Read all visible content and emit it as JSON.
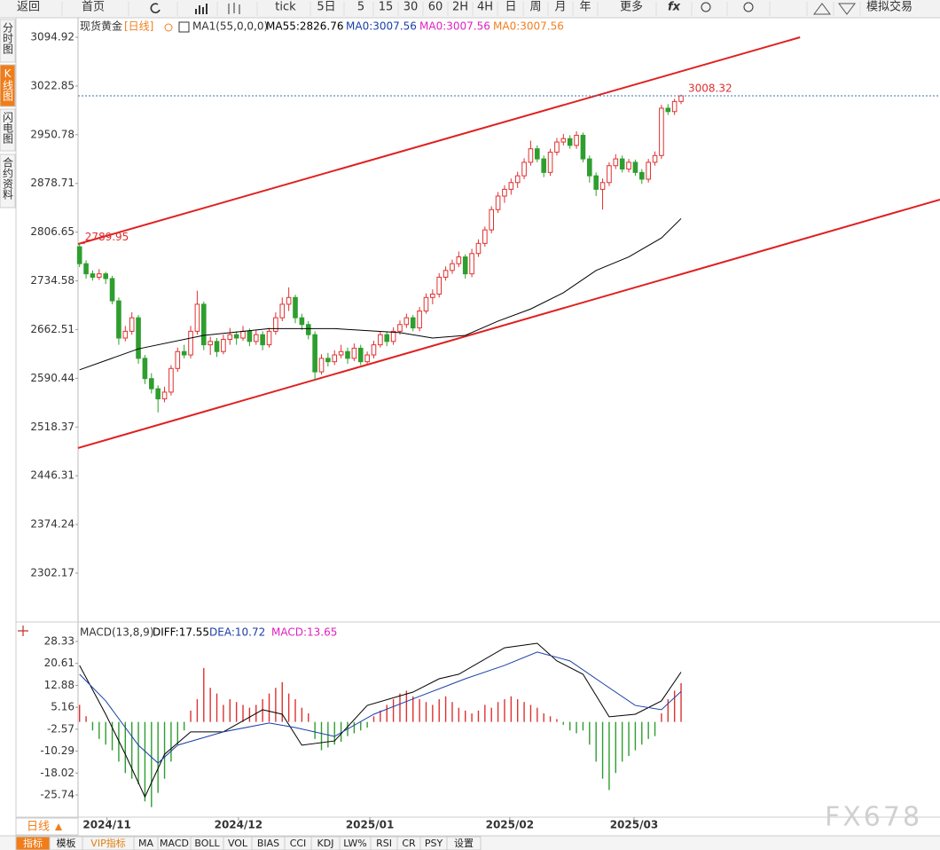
{
  "toolbar": [
    "返回",
    "首页",
    "tick",
    "5日",
    "5",
    "15",
    "30",
    "60",
    "2H",
    "4H",
    "日",
    "周",
    "月",
    "年",
    "更多",
    "fx",
    "模拟交易"
  ],
  "side_tabs": [
    "分时图",
    "K线图",
    "闪电图",
    "合约资料"
  ],
  "period_tab": "日线",
  "bottom_tabs": [
    "指标",
    "模板",
    "VIP指标",
    "MA",
    "MACD",
    "BOLL",
    "VOL",
    "BIAS",
    "CCI",
    "KDJ",
    "LW%",
    "RSI",
    "CR",
    "PSY",
    "设置"
  ],
  "watermark": "FX678",
  "chart_data": [
    {
      "type": "candlestick",
      "title": "现货黄金",
      "period": "[日线]",
      "indicator": "MA1(55,0,0,0)",
      "legend": [
        {
          "label": "MA55:2826.76",
          "color": "#000000"
        },
        {
          "label": "MA0:3007.56",
          "color": "#1a3fa8"
        },
        {
          "label": "MA0:3007.56",
          "color": "#e020c0"
        },
        {
          "label": "MA0:3007.56",
          "color": "#f08020"
        }
      ],
      "up_color": "#e03030",
      "down_color": "#2e9e2e",
      "xlim": [
        0.77,
        132.6
      ],
      "ylim": [
        2231.3,
        3121.2
      ],
      "yticks": [
        3094.92,
        3022.85,
        2950.78,
        2878.71,
        2806.65,
        2734.58,
        2662.51,
        2590.44,
        2518.37,
        2446.31,
        2374.24,
        2302.17
      ],
      "ohlc": [
        [
          2785,
          2789.95,
          2755,
          2760
        ],
        [
          2760,
          2765,
          2738,
          2745
        ],
        [
          2745,
          2750,
          2735,
          2740
        ],
        [
          2740,
          2752,
          2736,
          2745
        ],
        [
          2745,
          2748,
          2730,
          2738
        ],
        [
          2738,
          2742,
          2700,
          2705
        ],
        [
          2705,
          2710,
          2640,
          2650
        ],
        [
          2650,
          2668,
          2645,
          2660
        ],
        [
          2660,
          2688,
          2655,
          2680
        ],
        [
          2680,
          2684,
          2612,
          2620
        ],
        [
          2620,
          2625,
          2582,
          2590
        ],
        [
          2590,
          2598,
          2568,
          2575
        ],
        [
          2575,
          2580,
          2540,
          2560
        ],
        [
          2560,
          2578,
          2555,
          2570
        ],
        [
          2570,
          2610,
          2565,
          2605
        ],
        [
          2605,
          2636,
          2600,
          2630
        ],
        [
          2630,
          2640,
          2620,
          2625
        ],
        [
          2625,
          2668,
          2620,
          2660
        ],
        [
          2660,
          2720,
          2655,
          2700
        ],
        [
          2700,
          2704,
          2632,
          2640
        ],
        [
          2640,
          2652,
          2625,
          2645
        ],
        [
          2645,
          2650,
          2622,
          2630
        ],
        [
          2630,
          2655,
          2626,
          2648
        ],
        [
          2648,
          2665,
          2640,
          2655
        ],
        [
          2655,
          2660,
          2640,
          2650
        ],
        [
          2650,
          2668,
          2646,
          2660
        ],
        [
          2660,
          2664,
          2638,
          2645
        ],
        [
          2645,
          2662,
          2640,
          2655
        ],
        [
          2655,
          2660,
          2632,
          2640
        ],
        [
          2640,
          2665,
          2636,
          2660
        ],
        [
          2660,
          2688,
          2655,
          2680
        ],
        [
          2680,
          2710,
          2675,
          2700
        ],
        [
          2700,
          2725,
          2690,
          2710
        ],
        [
          2710,
          2714,
          2672,
          2680
        ],
        [
          2680,
          2686,
          2662,
          2670
        ],
        [
          2670,
          2675,
          2648,
          2655
        ],
        [
          2655,
          2660,
          2588,
          2600
        ],
        [
          2600,
          2626,
          2596,
          2620
        ],
        [
          2620,
          2628,
          2608,
          2615
        ],
        [
          2615,
          2632,
          2610,
          2625
        ],
        [
          2625,
          2640,
          2620,
          2630
        ],
        [
          2630,
          2636,
          2612,
          2620
        ],
        [
          2620,
          2642,
          2616,
          2635
        ],
        [
          2635,
          2640,
          2610,
          2615
        ],
        [
          2615,
          2630,
          2612,
          2625
        ],
        [
          2625,
          2646,
          2620,
          2640
        ],
        [
          2640,
          2660,
          2636,
          2655
        ],
        [
          2655,
          2660,
          2638,
          2645
        ],
        [
          2645,
          2666,
          2640,
          2660
        ],
        [
          2660,
          2676,
          2655,
          2670
        ],
        [
          2670,
          2686,
          2665,
          2680
        ],
        [
          2680,
          2684,
          2660,
          2665
        ],
        [
          2665,
          2696,
          2660,
          2690
        ],
        [
          2690,
          2716,
          2686,
          2710
        ],
        [
          2710,
          2722,
          2700,
          2715
        ],
        [
          2715,
          2746,
          2710,
          2740
        ],
        [
          2740,
          2756,
          2735,
          2750
        ],
        [
          2750,
          2766,
          2745,
          2760
        ],
        [
          2760,
          2778,
          2755,
          2770
        ],
        [
          2770,
          2774,
          2738,
          2745
        ],
        [
          2745,
          2782,
          2740,
          2775
        ],
        [
          2775,
          2796,
          2770,
          2790
        ],
        [
          2790,
          2815,
          2785,
          2810
        ],
        [
          2810,
          2845,
          2805,
          2840
        ],
        [
          2840,
          2866,
          2835,
          2860
        ],
        [
          2860,
          2876,
          2850,
          2870
        ],
        [
          2870,
          2886,
          2862,
          2880
        ],
        [
          2880,
          2896,
          2872,
          2890
        ],
        [
          2890,
          2916,
          2885,
          2910
        ],
        [
          2910,
          2942,
          2905,
          2930
        ],
        [
          2930,
          2935,
          2910,
          2915
        ],
        [
          2915,
          2920,
          2888,
          2895
        ],
        [
          2895,
          2930,
          2890,
          2925
        ],
        [
          2925,
          2946,
          2920,
          2940
        ],
        [
          2940,
          2952,
          2935,
          2945
        ],
        [
          2945,
          2950,
          2930,
          2935
        ],
        [
          2935,
          2956,
          2930,
          2950
        ],
        [
          2950,
          2954,
          2910,
          2915
        ],
        [
          2915,
          2920,
          2880,
          2890
        ],
        [
          2890,
          2895,
          2860,
          2870
        ],
        [
          2870,
          2886,
          2840,
          2880
        ],
        [
          2880,
          2910,
          2875,
          2905
        ],
        [
          2905,
          2922,
          2900,
          2915
        ],
        [
          2915,
          2920,
          2895,
          2900
        ],
        [
          2900,
          2915,
          2895,
          2910
        ],
        [
          2910,
          2914,
          2890,
          2895
        ],
        [
          2895,
          2900,
          2878,
          2885
        ],
        [
          2885,
          2915,
          2880,
          2910
        ],
        [
          2910,
          2926,
          2905,
          2920
        ],
        [
          2920,
          2995,
          2915,
          2990
        ],
        [
          2990,
          2996,
          2980,
          2985
        ],
        [
          2985,
          3004,
          2980,
          3000
        ],
        [
          3000,
          3010,
          2996,
          3008.32
        ]
      ],
      "ma55": {
        "color": "#000000",
        "x": [
          1,
          10,
          20,
          30,
          40,
          50,
          55,
          60,
          65,
          70,
          75,
          80,
          85,
          90,
          93
        ],
        "values": [
          2603,
          2634,
          2654,
          2664,
          2664,
          2658,
          2650,
          2654,
          2675,
          2693,
          2717,
          2750,
          2770,
          2798,
          2826.76
        ]
      },
      "trendlines": [
        {
          "color": "#e02020",
          "x": [
            0.77,
            111.2
          ],
          "values": [
            2789.1,
            3094.92
          ]
        },
        {
          "color": "#e02020",
          "x": [
            0.77,
            132.6
          ],
          "values": [
            2487.3,
            2854.8
          ]
        }
      ]
    },
    {
      "type": "macd",
      "title": "MACD(13,8,9)",
      "legend": [
        {
          "label": "DIFF:17.55",
          "color": "#000000"
        },
        {
          "label": "DEA:10.72",
          "color": "#1a3fa8"
        },
        {
          "label": "MACD:13.65",
          "color": "#e020c0"
        }
      ],
      "xlim": [
        0.77,
        132.6
      ],
      "ylim": [
        -34.8,
        33.95
      ],
      "yticks": [
        28.33,
        20.61,
        12.88,
        5.16,
        -2.57,
        -10.29,
        -18.02,
        -25.74
      ],
      "xticks": [
        {
          "value": 5.2,
          "label": "2024/11"
        },
        {
          "value": 25.3,
          "label": "2024/12"
        },
        {
          "value": 45.4,
          "label": "2025/01"
        },
        {
          "value": 66.8,
          "label": "2025/02"
        },
        {
          "value": 85.8,
          "label": "2025/03"
        }
      ],
      "histogram": [
        6,
        2,
        -3,
        -6,
        -8,
        -10,
        -14,
        -18,
        -20,
        -22,
        -28,
        -30,
        -25,
        -20,
        -14,
        -8,
        -3,
        4,
        8,
        19,
        12,
        10,
        6,
        8,
        7,
        6,
        5,
        6,
        8,
        10,
        12,
        14,
        10,
        8,
        5,
        3,
        -6,
        -10,
        -9,
        -8,
        -7,
        -5,
        -4,
        -3,
        -2,
        2,
        4,
        6,
        8,
        10,
        11,
        9,
        8,
        7,
        6,
        8,
        9,
        7,
        5,
        4,
        3,
        4,
        6,
        5,
        7,
        8,
        9,
        8,
        7,
        6,
        5,
        3,
        2,
        1,
        -1,
        -3,
        -4,
        -3,
        -8,
        -14,
        -20,
        -24,
        -18,
        -14,
        -12,
        -10,
        -8,
        -6,
        -5,
        3,
        8,
        11,
        13.65
      ],
      "up_color": "#e03030",
      "down_color": "#2e9e2e",
      "diff": {
        "color": "#000000",
        "x": [
          1,
          5,
          8,
          11,
          14,
          18,
          23,
          29,
          32,
          35,
          40,
          45,
          52,
          56,
          59,
          66,
          71,
          74,
          78,
          82,
          86,
          90,
          93
        ],
        "values": [
          19.9,
          2.7,
          -11.4,
          -26.4,
          -11.4,
          -3.5,
          -3.5,
          4.3,
          2.7,
          -8.2,
          -6.7,
          5.8,
          10.5,
          15.2,
          16.8,
          26.1,
          27.7,
          21.5,
          16.8,
          1.8,
          2.7,
          7.4,
          17.55
        ]
      },
      "dea": {
        "color": "#1a3fa8",
        "x": [
          1,
          5,
          10,
          13,
          16,
          23,
          30,
          34,
          40,
          46,
          53,
          60,
          66,
          71,
          76,
          81,
          86,
          90,
          93
        ],
        "values": [
          16.8,
          7.4,
          -8.2,
          -14.5,
          -8.2,
          -3.5,
          -0.4,
          -2.0,
          -5.1,
          2.7,
          9.0,
          15.2,
          19.9,
          24.6,
          21.5,
          13.6,
          5.8,
          4.3,
          10.72
        ]
      }
    }
  ]
}
